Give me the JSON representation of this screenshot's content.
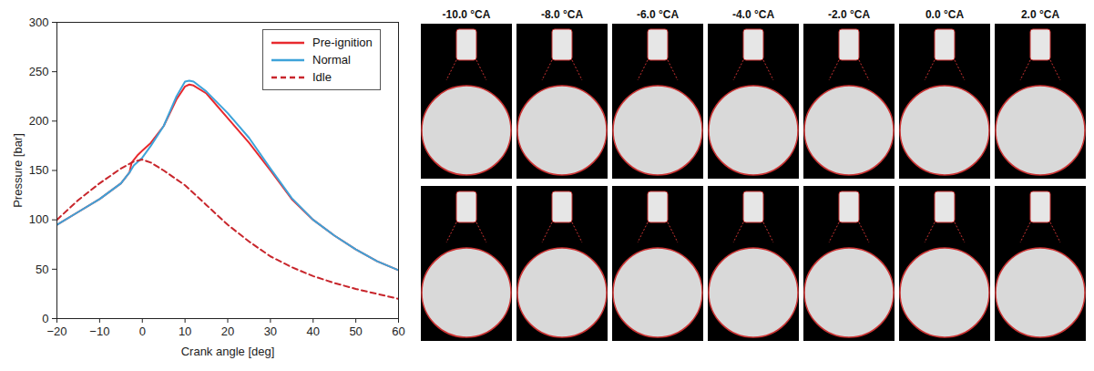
{
  "chart_data": {
    "type": "line",
    "x_label": "Crank angle [deg]",
    "y_label": "Pressure [bar]",
    "xlim": [
      -20,
      60
    ],
    "xticks": [
      -20,
      -10,
      0,
      10,
      20,
      30,
      40,
      50,
      60
    ],
    "ylim": [
      0,
      300
    ],
    "yticks": [
      0,
      50,
      100,
      150,
      200,
      250,
      300
    ],
    "grid": false,
    "legend": "upper right",
    "series": [
      {
        "name": "Pre-ignition",
        "color": "#e8292e",
        "line_style": "solid",
        "x": [
          -20,
          -15,
          -10,
          -5,
          -3,
          -2.5,
          -1,
          0,
          2,
          5,
          8,
          10,
          11,
          12,
          15,
          20,
          25,
          30,
          35,
          40,
          45,
          50,
          55,
          60
        ],
        "values": [
          95,
          108,
          121,
          137,
          148,
          158,
          166,
          170,
          178,
          195,
          222,
          235,
          237,
          236,
          228,
          203,
          178,
          150,
          121,
          100,
          84,
          70,
          58,
          49
        ]
      },
      {
        "name": "Normal",
        "color": "#3ea3d9",
        "line_style": "solid",
        "x": [
          -20,
          -15,
          -10,
          -5,
          -3,
          -2,
          0,
          2,
          5,
          8,
          10,
          11,
          12,
          15,
          20,
          25,
          30,
          35,
          40,
          45,
          50,
          55,
          60
        ],
        "values": [
          95,
          108,
          121,
          137,
          148,
          155,
          163,
          175,
          195,
          225,
          240,
          241,
          240,
          230,
          208,
          183,
          152,
          122,
          100,
          84,
          70,
          58,
          49
        ]
      },
      {
        "name": "Idle",
        "color": "#c8262c",
        "line_style": "dashed",
        "x": [
          -20,
          -15,
          -10,
          -5,
          -2,
          0,
          2,
          5,
          10,
          15,
          20,
          25,
          30,
          35,
          40,
          45,
          50,
          55,
          60
        ],
        "values": [
          100,
          120,
          137,
          152,
          159,
          161,
          158,
          150,
          135,
          115,
          95,
          78,
          63,
          52,
          43,
          36,
          30,
          25,
          20
        ]
      }
    ]
  },
  "image_grid": {
    "column_labels": [
      "-10.0 °CA",
      "-8.0 °CA",
      "-6.0 °CA",
      "-4.0 °CA",
      "-2.0 °CA",
      "0.0 °CA",
      "2.0 °CA"
    ],
    "rows": 2
  }
}
